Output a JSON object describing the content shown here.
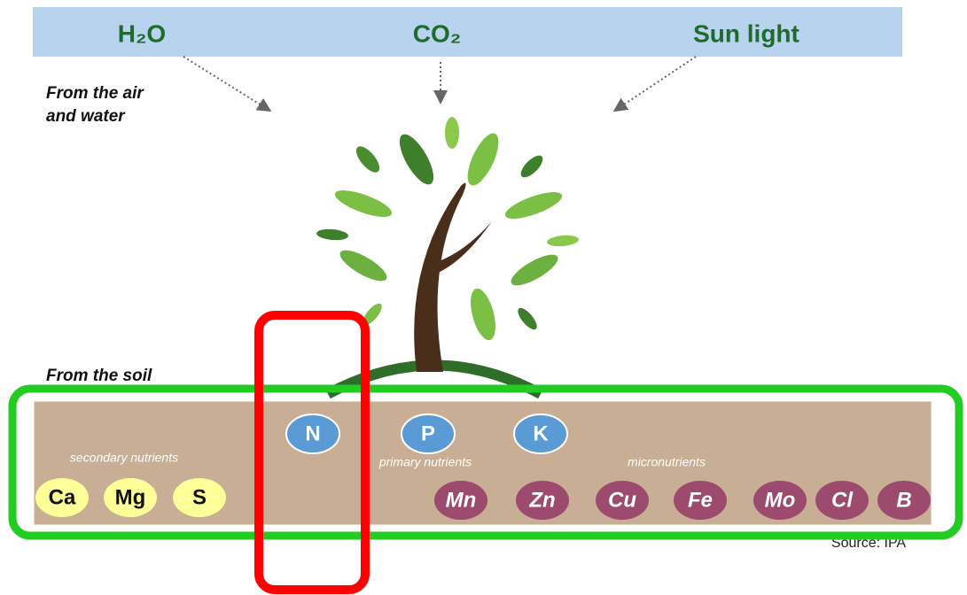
{
  "inputs": {
    "water": "H₂O",
    "carbon_dioxide": "CO₂",
    "sunlight": "Sun light"
  },
  "air_label": [
    "From the air",
    "and water"
  ],
  "soil_label": "From the soil",
  "groups": {
    "secondary": "secondary nutrients",
    "primary": "primary nutrients",
    "micro": "micronutrients"
  },
  "primary_nutrients": [
    "N",
    "P",
    "K"
  ],
  "secondary_nutrients": [
    "Ca",
    "Mg",
    "S"
  ],
  "micronutrients": [
    "Mn",
    "Zn",
    "Cu",
    "Fe",
    "Mo",
    "Cl",
    "B"
  ],
  "source": "Source: IPA"
}
